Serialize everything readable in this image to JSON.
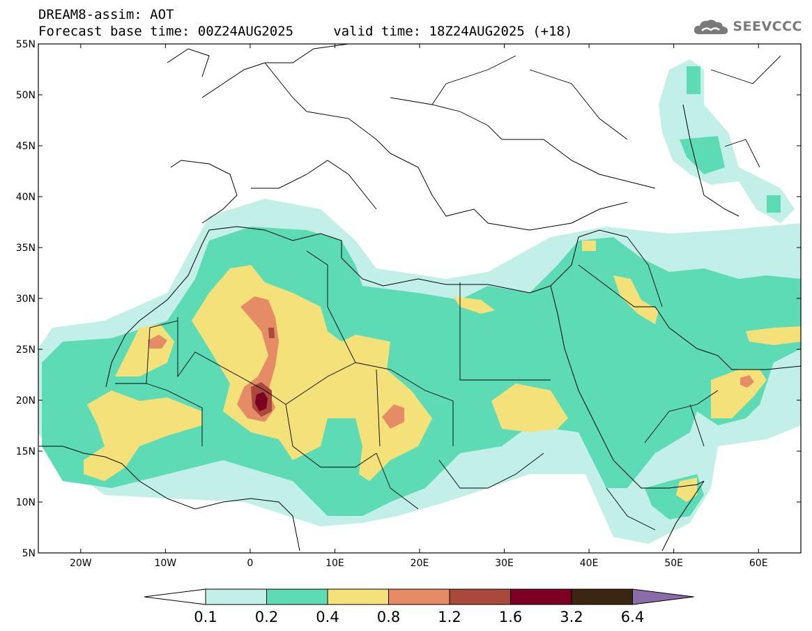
{
  "header": {
    "title": "DREAM8-assim: AOT",
    "forecast_line": "Forecast base time: 00Z24AUG2025     valid time: 18Z24AUG2025 (+18)"
  },
  "logo": {
    "icon": "cloud-icon",
    "text": "SEEVCCC",
    "color": "#7a7a7a"
  },
  "map": {
    "lon_range": [
      -25,
      65
    ],
    "lat_range": [
      5,
      55
    ],
    "lon_ticks": [
      {
        "value": -20,
        "label": "20W"
      },
      {
        "value": -10,
        "label": "10W"
      },
      {
        "value": 0,
        "label": "0"
      },
      {
        "value": 10,
        "label": "10E"
      },
      {
        "value": 20,
        "label": "20E"
      },
      {
        "value": 30,
        "label": "30E"
      },
      {
        "value": 40,
        "label": "40E"
      },
      {
        "value": 50,
        "label": "50E"
      },
      {
        "value": 60,
        "label": "60E"
      }
    ],
    "lat_ticks": [
      {
        "value": 5,
        "label": "5N"
      },
      {
        "value": 10,
        "label": "10N"
      },
      {
        "value": 15,
        "label": "15N"
      },
      {
        "value": 20,
        "label": "20N"
      },
      {
        "value": 25,
        "label": "25N"
      },
      {
        "value": 30,
        "label": "30N"
      },
      {
        "value": 35,
        "label": "35N"
      },
      {
        "value": 40,
        "label": "40N"
      },
      {
        "value": 45,
        "label": "45N"
      },
      {
        "value": 50,
        "label": "50N"
      },
      {
        "value": 55,
        "label": "55N"
      }
    ]
  },
  "colorbar": {
    "levels": [
      "0.1",
      "0.2",
      "0.4",
      "0.8",
      "1.2",
      "1.6",
      "3.2",
      "6.4"
    ],
    "colors": [
      "#ffffff",
      "#c2efe8",
      "#5ddbb5",
      "#f5e17a",
      "#e58c67",
      "#a8493c",
      "#7d0024",
      "#3b2612",
      "#8c6ba8"
    ]
  }
}
